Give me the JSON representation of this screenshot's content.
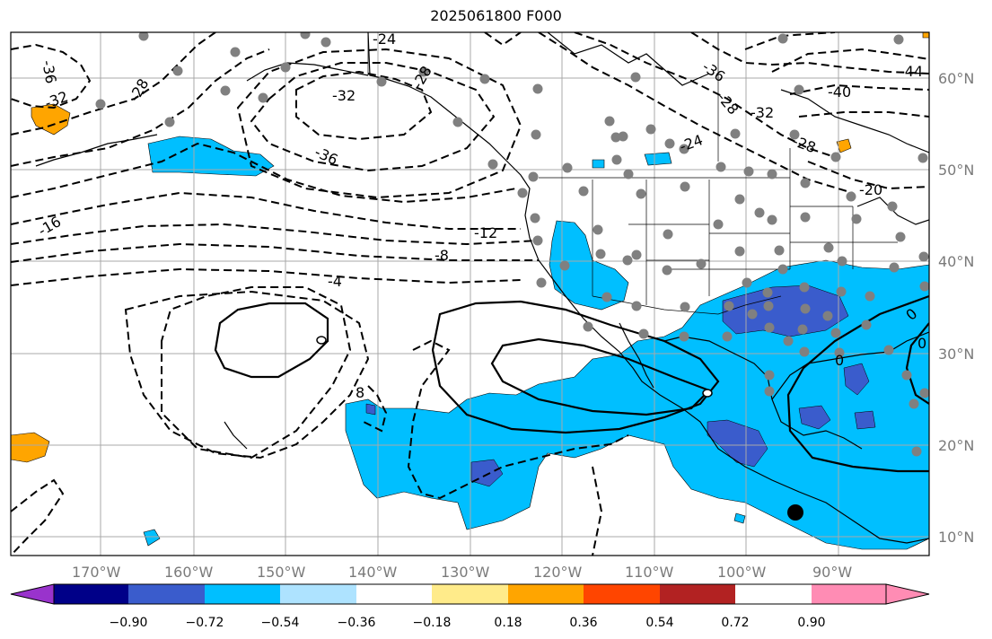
{
  "title": "2025061800 F000",
  "lon_ticks": [
    "170°W",
    "160°W",
    "150°W",
    "140°W",
    "130°W",
    "120°W",
    "110°W",
    "100°W",
    "90°W"
  ],
  "lat_ticks": [
    "60°N",
    "50°N",
    "40°N",
    "30°N",
    "20°N",
    "10°N"
  ],
  "contour_labels": [
    "-36",
    "-32",
    "-28",
    "-36",
    "-32",
    "-24",
    "-28",
    "-16",
    "-12",
    "-8",
    "-4",
    "0",
    "0",
    "0",
    "8",
    "-36",
    "-32",
    "-24",
    "-28",
    "-44",
    "-40",
    "-28",
    "-20"
  ],
  "colorbar": {
    "ticks": [
      "−0.90",
      "−0.72",
      "−0.54",
      "−0.36",
      "−0.18",
      "0.18",
      "0.36",
      "0.54",
      "0.72",
      "0.90"
    ],
    "colors": [
      "#9933cc",
      "#000088",
      "#3a5ccc",
      "#00bfff",
      "#aee3ff",
      "#ffffff",
      "#ffeb8a",
      "#ffa500",
      "#ff4500",
      "#b22222",
      "#ff8cb4"
    ]
  },
  "colors": {
    "negative_fill": "#00bfff",
    "strong_negative_fill": "#3a5ccc",
    "positive_fill": "#ffa500",
    "station_dot": "#808080"
  }
}
